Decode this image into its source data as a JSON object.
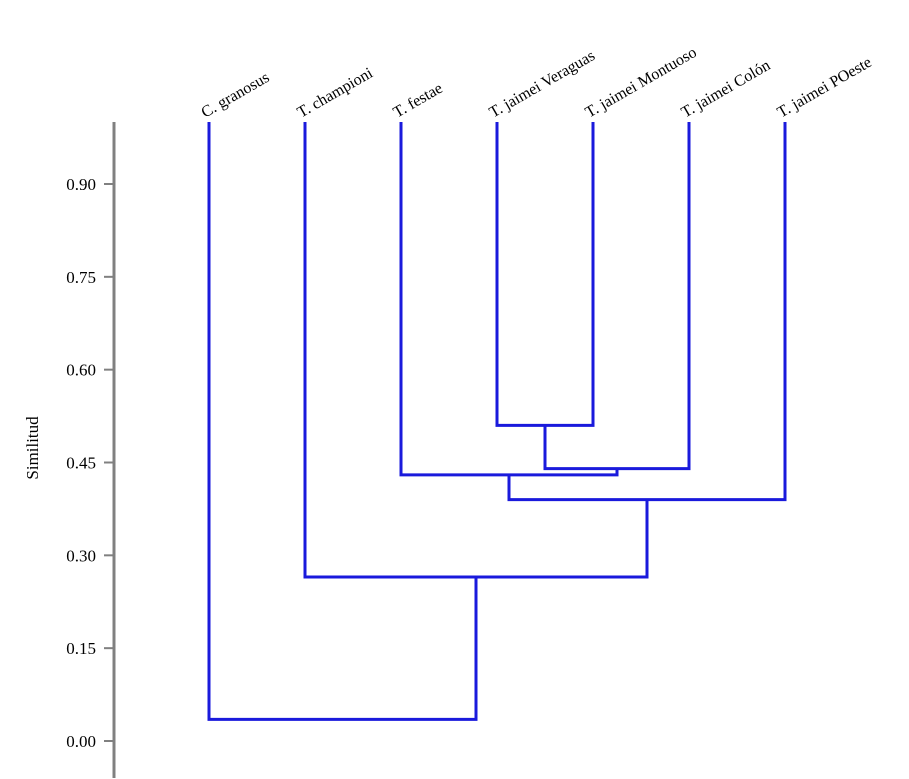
{
  "chart_data": {
    "type": "dendrogram",
    "ylabel": "Similitud",
    "ylim": [
      -0.05,
      1.0
    ],
    "yticks": [
      "0.00",
      "0.15",
      "0.30",
      "0.45",
      "0.60",
      "0.75",
      "0.90"
    ],
    "leaves": [
      "C. granosus",
      "T. championi",
      "T. festae",
      "T. jaimei Veraguas",
      "T. jaimei Montuoso",
      "T. jaimei Colón",
      "T. jaimei POeste"
    ],
    "merges": [
      {
        "left": "T. jaimei Veraguas",
        "right": "T. jaimei Montuoso",
        "similarity": 0.51
      },
      {
        "left": "(T. jaimei Veraguas, T. jaimei Montuoso)",
        "right": "T. jaimei Colón",
        "similarity": 0.44
      },
      {
        "left": "T. festae",
        "right": "(T. jaimei Veraguas, T. jaimei Montuoso, T. jaimei Colón)",
        "similarity": 0.43
      },
      {
        "left": "(T. festae, T. jaimei Veraguas, T. jaimei Montuoso, T. jaimei Colón)",
        "right": "T. jaimei POeste",
        "similarity": 0.39
      },
      {
        "left": "T. championi",
        "right": "(T. festae, T. jaimei, T. jaimei POeste)",
        "similarity": 0.265
      },
      {
        "left": "C. granosus",
        "right": "(T. championi, ...)",
        "similarity": 0.035
      }
    ],
    "line_color": "#1a1adc",
    "axis_color": "#808080"
  }
}
